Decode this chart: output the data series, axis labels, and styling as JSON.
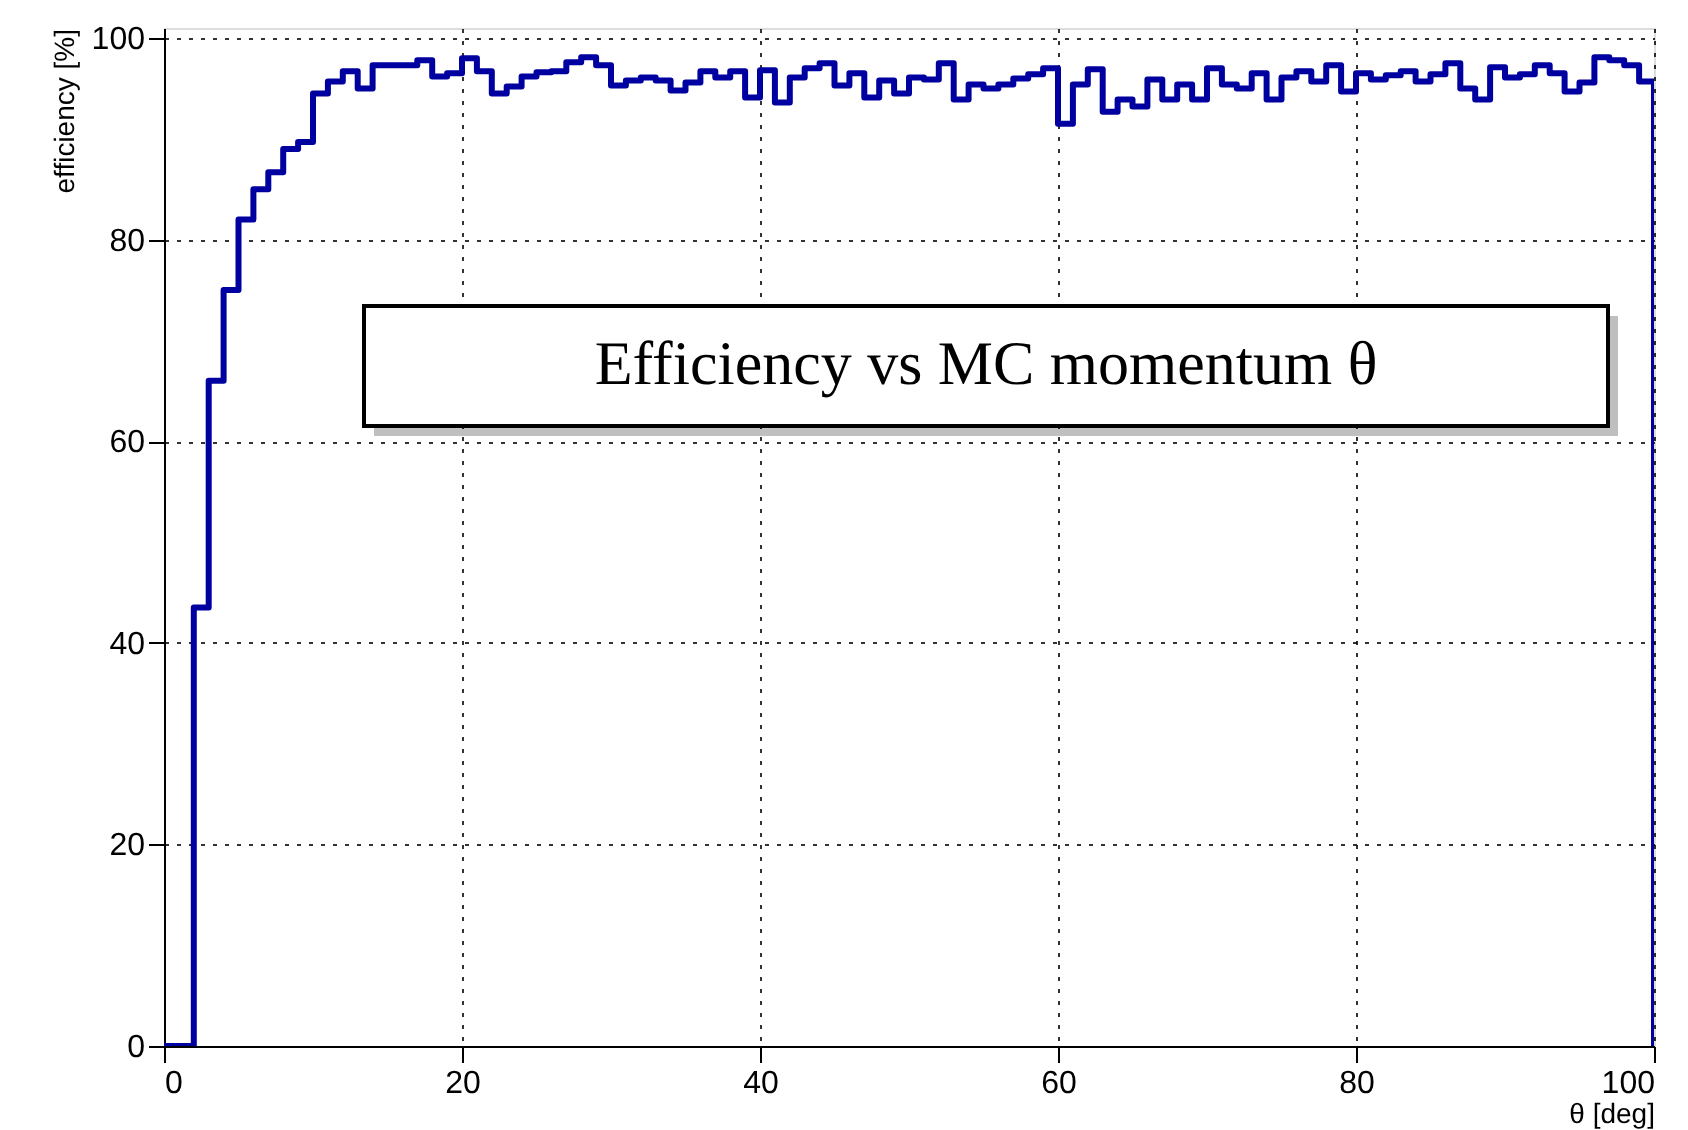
{
  "chart_data": {
    "type": "histogram",
    "xlabel": "θ [deg]",
    "ylabel": "efficiency [%]",
    "annotations": [
      "Efficiency vs MC momentum θ"
    ],
    "bins": [
      0,
      1,
      2,
      3,
      4,
      5,
      6,
      7,
      8,
      9,
      10,
      11,
      12,
      13,
      14,
      15,
      16,
      17,
      18,
      19,
      20,
      21,
      22,
      23,
      24,
      25,
      26,
      27,
      28,
      29,
      30,
      31,
      32,
      33,
      34,
      35,
      36,
      37,
      38,
      39,
      40,
      41,
      42,
      43,
      44,
      45,
      46,
      47,
      48,
      49,
      50,
      51,
      52,
      53,
      54,
      55,
      56,
      57,
      58,
      59,
      60,
      61,
      62,
      63,
      64,
      65,
      66,
      67,
      68,
      69,
      70,
      71,
      72,
      73,
      74,
      75,
      76,
      77,
      78,
      79,
      80,
      81,
      82,
      83,
      84,
      85,
      86,
      87,
      88,
      89,
      90,
      91,
      92,
      93,
      94,
      95,
      96,
      97,
      98,
      99,
      100
    ],
    "values": [
      0,
      0,
      43.5,
      66,
      75,
      82,
      85,
      86.7,
      89,
      89.7,
      94.5,
      95.7,
      96.7,
      95,
      97.3,
      97.3,
      97.3,
      97.8,
      96.2,
      96.5,
      98,
      96.7,
      94.5,
      95.2,
      96.2,
      96.6,
      96.7,
      97.6,
      98.1,
      97.3,
      95.3,
      95.8,
      96.1,
      95.8,
      94.8,
      95.6,
      96.7,
      96.1,
      96.7,
      94.1,
      96.8,
      93.6,
      96.1,
      97,
      97.5,
      95.3,
      96.5,
      94.1,
      95.8,
      94.5,
      96.1,
      95.9,
      97.5,
      93.9,
      95.4,
      95,
      95.4,
      96,
      96.4,
      97,
      91.5,
      95.4,
      96.9,
      92.7,
      93.9,
      93.2,
      95.9,
      93.9,
      95.4,
      93.9,
      97,
      95.4,
      95,
      96.5,
      93.9,
      96.1,
      96.7,
      95.7,
      97.3,
      94.7,
      96.5,
      95.9,
      96.3,
      96.7,
      95.7,
      96.4,
      97.5,
      95,
      93.9,
      97.1,
      96.1,
      96.4,
      97.3,
      96.5,
      94.7,
      95.6,
      98.1,
      97.8,
      97.3,
      95.7
    ],
    "color": "#0000a0",
    "xlim": [
      0,
      100
    ],
    "ylim": [
      0,
      101
    ],
    "xticks": [
      0,
      20,
      40,
      60,
      80,
      100
    ],
    "yticks": [
      0,
      20,
      40,
      60,
      80,
      100
    ],
    "grid": true
  }
}
